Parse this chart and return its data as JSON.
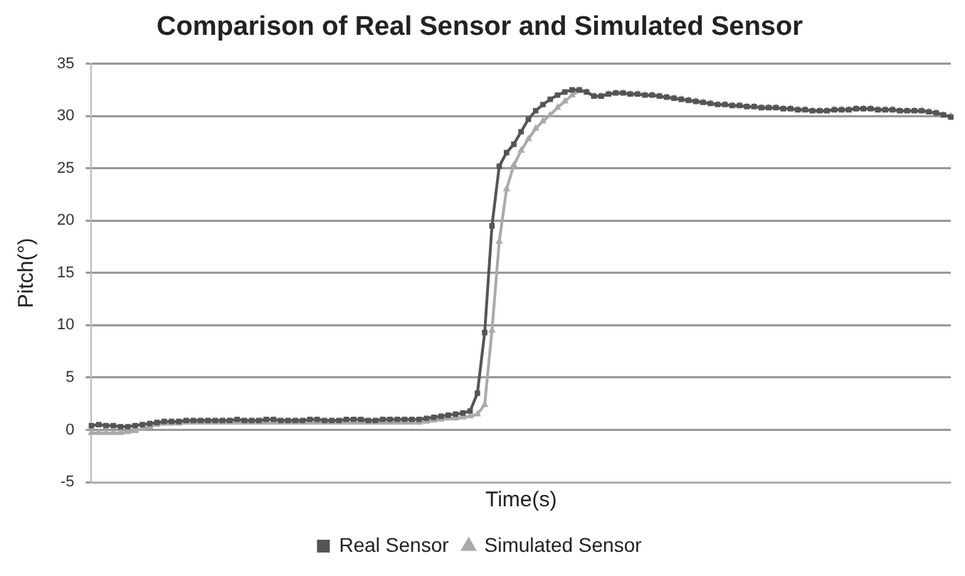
{
  "chart_data": {
    "type": "line",
    "title": "Comparison of Real Sensor and Simulated Sensor",
    "xlabel": "Time(s)",
    "ylabel": "Pitch(°)",
    "categories": [
      null,
      null,
      null,
      null,
      null,
      null,
      null,
      null,
      null,
      null,
      null,
      null,
      null,
      null,
      null,
      null,
      null,
      null,
      null,
      null,
      null,
      null,
      null,
      null,
      null,
      null,
      null,
      null,
      null,
      null,
      null,
      null,
      null,
      null,
      null,
      null,
      null,
      null,
      null,
      null,
      null,
      null,
      null,
      null,
      null,
      null,
      null,
      null,
      null,
      null,
      null,
      null,
      null,
      null,
      null,
      null,
      null,
      null,
      null,
      null,
      null,
      null,
      null,
      null,
      null,
      null,
      null,
      null,
      null,
      null,
      null,
      null,
      null,
      null,
      null,
      null,
      null,
      null,
      null,
      null,
      null,
      null,
      null,
      null,
      null,
      null,
      null,
      null,
      null,
      null,
      null,
      null,
      null,
      null,
      null,
      null,
      null,
      null,
      null,
      null,
      null,
      null,
      null,
      null,
      null,
      null,
      null,
      null,
      null,
      null,
      null,
      null,
      null,
      null,
      null,
      null,
      null,
      null,
      null
    ],
    "series": [
      {
        "name": "Real Sensor",
        "color": "#555555",
        "marker": "square",
        "values": [
          0.4,
          0.5,
          0.4,
          0.4,
          0.3,
          0.3,
          0.4,
          0.5,
          0.6,
          0.7,
          0.8,
          0.8,
          0.8,
          0.9,
          0.9,
          0.9,
          0.9,
          0.9,
          0.9,
          0.9,
          1.0,
          0.9,
          0.9,
          0.9,
          1.0,
          1.0,
          0.9,
          0.9,
          0.9,
          0.9,
          1.0,
          1.0,
          0.9,
          0.9,
          0.9,
          1.0,
          1.0,
          1.0,
          0.9,
          0.9,
          1.0,
          1.0,
          1.0,
          1.0,
          1.0,
          1.0,
          1.1,
          1.2,
          1.3,
          1.4,
          1.5,
          1.6,
          1.8,
          3.5,
          9.3,
          19.5,
          25.2,
          26.5,
          27.3,
          28.5,
          29.7,
          30.5,
          31.1,
          31.6,
          32.0,
          32.3,
          32.5,
          32.5,
          32.3,
          31.9,
          31.9,
          32.1,
          32.2,
          32.2,
          32.1,
          32.1,
          32.0,
          32.0,
          31.9,
          31.8,
          31.7,
          31.6,
          31.5,
          31.4,
          31.3,
          31.2,
          31.1,
          31.1,
          31.0,
          31.0,
          30.9,
          30.9,
          30.8,
          30.8,
          30.8,
          30.7,
          30.7,
          30.6,
          30.6,
          30.5,
          30.5,
          30.5,
          30.6,
          30.6,
          30.6,
          30.7,
          30.7,
          30.7,
          30.6,
          30.6,
          30.6,
          30.5,
          30.5,
          30.5,
          30.5,
          30.4,
          30.3,
          30.1,
          29.9
        ]
      },
      {
        "name": "Simulated Sensor",
        "color": "#aaaaaa",
        "marker": "triangle",
        "values": [
          -0.3,
          -0.3,
          -0.3,
          -0.3,
          -0.3,
          -0.2,
          -0.1,
          0.1,
          0.3,
          0.5,
          0.6,
          0.6,
          0.6,
          0.7,
          0.7,
          0.7,
          0.7,
          0.7,
          0.7,
          0.7,
          0.7,
          0.7,
          0.7,
          0.7,
          0.7,
          0.7,
          0.7,
          0.7,
          0.7,
          0.7,
          0.7,
          0.7,
          0.7,
          0.7,
          0.7,
          0.7,
          0.7,
          0.7,
          0.7,
          0.7,
          0.7,
          0.7,
          0.7,
          0.7,
          0.7,
          0.7,
          0.8,
          0.9,
          1.0,
          1.1,
          1.1,
          1.2,
          1.3,
          1.5,
          2.4,
          9.5,
          18.0,
          23.0,
          25.3,
          26.7,
          27.8,
          28.8,
          29.5,
          30.1,
          30.8,
          31.4,
          32.0,
          32.4,
          32.3,
          31.9,
          31.9,
          32.1,
          32.2,
          32.2,
          32.1,
          32.1,
          32.0,
          32.0,
          31.9,
          31.8,
          31.7,
          31.6,
          31.5,
          31.4,
          31.3,
          31.2,
          31.1,
          31.1,
          31.0,
          31.0,
          30.9,
          30.9,
          30.8,
          30.8,
          30.8,
          30.7,
          30.7,
          30.6,
          30.6,
          30.5,
          30.5,
          30.5,
          30.6,
          30.6,
          30.6,
          30.7,
          30.7,
          30.7,
          30.6,
          30.6,
          30.6,
          30.5,
          30.5,
          30.5,
          30.5,
          30.4,
          30.3,
          30.1,
          30.0
        ]
      }
    ],
    "ylim": [
      -5,
      35
    ],
    "yticks": [
      -5,
      0,
      5,
      10,
      15,
      20,
      25,
      30,
      35
    ],
    "grid": "y",
    "legend": "bottom",
    "tick_labels": "y"
  }
}
